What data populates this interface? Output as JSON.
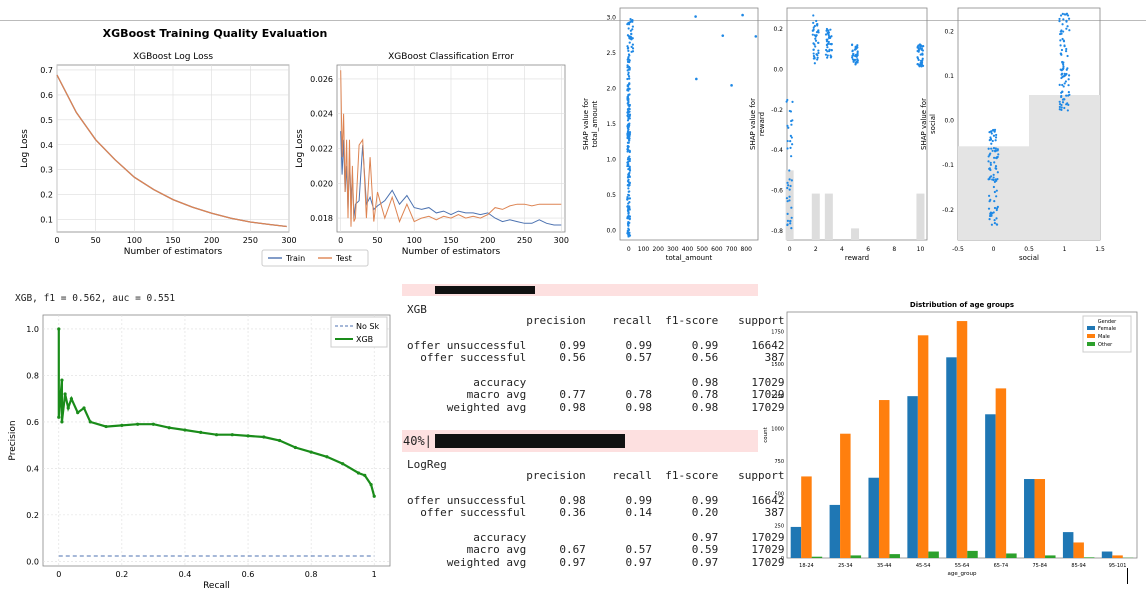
{
  "colors": {
    "blue": "#4c72b0",
    "orange": "#dd8452",
    "shap_blue": "#1e88e5",
    "green": "#1a8c1a",
    "pink": "#fde0e0",
    "bar_female": "#1f77b4",
    "bar_male": "#ff7f0e",
    "bar_other": "#2ca02c"
  },
  "xgb_eval": {
    "suptitle": "XGBoost Training Quality Evaluation",
    "legend": [
      "Train",
      "Test"
    ]
  },
  "pr_header": "XGB, f1 = 0.562, auc = 0.551",
  "report_progress": "40%|",
  "report_xgb": {
    "title": "XGB",
    "lines": [
      "                  precision    recall  f1-score   support",
      "",
      "offer unsuccessful     0.99      0.99      0.99     16642",
      "  offer successful     0.56      0.57      0.56       387",
      "",
      "          accuracy                         0.98     17029",
      "         macro avg     0.77      0.78      0.78     17029",
      "      weighted avg     0.98      0.98      0.98     17029"
    ]
  },
  "report_logreg": {
    "title": "LogReg",
    "lines": [
      "                  precision    recall  f1-score   support",
      "",
      "offer unsuccessful     0.98      0.99      0.99     16642",
      "  offer successful     0.36      0.14      0.20       387",
      "",
      "          accuracy                         0.97     17029",
      "         macro avg     0.67      0.57      0.59     17029",
      "      weighted avg     0.97      0.97      0.97     17029"
    ]
  },
  "chart_data": [
    {
      "id": "logloss",
      "type": "line",
      "title": "XGBoost Log Loss",
      "xlabel": "Number of estimators",
      "ylabel": "Log Loss",
      "xlim": [
        0,
        300
      ],
      "ylim": [
        0.05,
        0.72
      ],
      "xticks": [
        0,
        50,
        100,
        150,
        200,
        250,
        300
      ],
      "yticks": [
        0.1,
        0.2,
        0.3,
        0.4,
        0.5,
        0.6,
        0.7
      ],
      "series": [
        {
          "name": "Train",
          "color": "#4c72b0",
          "x": [
            0,
            25,
            50,
            75,
            100,
            125,
            150,
            175,
            200,
            225,
            250,
            275,
            297
          ],
          "values": [
            0.68,
            0.53,
            0.42,
            0.34,
            0.27,
            0.22,
            0.18,
            0.15,
            0.125,
            0.105,
            0.09,
            0.08,
            0.072
          ]
        },
        {
          "name": "Test",
          "color": "#dd8452",
          "x": [
            0,
            25,
            50,
            75,
            100,
            125,
            150,
            175,
            200,
            225,
            250,
            275,
            297
          ],
          "values": [
            0.68,
            0.53,
            0.42,
            0.34,
            0.27,
            0.22,
            0.18,
            0.15,
            0.125,
            0.105,
            0.09,
            0.08,
            0.072
          ]
        }
      ],
      "grid": true
    },
    {
      "id": "clferror",
      "type": "line",
      "title": "XGBoost Classification Error",
      "xlabel": "Number of estimators",
      "ylabel": "Log Loss",
      "xlim": [
        -5,
        305
      ],
      "ylim": [
        0.0172,
        0.0268
      ],
      "xticks": [
        0,
        50,
        100,
        150,
        200,
        250,
        300
      ],
      "yticks": [
        0.018,
        0.02,
        0.022,
        0.024,
        0.026
      ],
      "series": [
        {
          "name": "Train",
          "color": "#4c72b0",
          "x": [
            0,
            2,
            4,
            6,
            8,
            10,
            12,
            14,
            16,
            18,
            20,
            25,
            30,
            35,
            40,
            45,
            50,
            60,
            70,
            80,
            90,
            100,
            110,
            120,
            130,
            140,
            150,
            160,
            170,
            180,
            190,
            200,
            210,
            220,
            230,
            240,
            250,
            260,
            270,
            280,
            290,
            300
          ],
          "values": [
            0.023,
            0.0205,
            0.0225,
            0.0195,
            0.021,
            0.0185,
            0.0215,
            0.019,
            0.0205,
            0.018,
            0.0188,
            0.019,
            0.0222,
            0.0188,
            0.0192,
            0.0185,
            0.0187,
            0.019,
            0.0196,
            0.0188,
            0.0193,
            0.0186,
            0.0185,
            0.0186,
            0.0183,
            0.0184,
            0.0182,
            0.0184,
            0.0183,
            0.0183,
            0.0182,
            0.0183,
            0.018,
            0.0178,
            0.0179,
            0.0178,
            0.0177,
            0.0177,
            0.0179,
            0.0177,
            0.0176,
            0.0176
          ]
        },
        {
          "name": "Test",
          "color": "#dd8452",
          "x": [
            0,
            2,
            4,
            6,
            8,
            10,
            12,
            14,
            16,
            18,
            20,
            25,
            30,
            35,
            40,
            45,
            50,
            60,
            70,
            80,
            90,
            100,
            110,
            120,
            130,
            140,
            150,
            160,
            170,
            180,
            190,
            200,
            210,
            220,
            230,
            240,
            250,
            260,
            270,
            280,
            290,
            300
          ],
          "values": [
            0.0265,
            0.0215,
            0.024,
            0.0195,
            0.0225,
            0.018,
            0.0225,
            0.0175,
            0.021,
            0.0178,
            0.018,
            0.0222,
            0.0225,
            0.018,
            0.0215,
            0.0178,
            0.0195,
            0.018,
            0.0192,
            0.0178,
            0.0188,
            0.0178,
            0.018,
            0.0181,
            0.0179,
            0.0181,
            0.018,
            0.0182,
            0.018,
            0.0181,
            0.018,
            0.0182,
            0.0186,
            0.0185,
            0.0187,
            0.0188,
            0.0188,
            0.0187,
            0.0188,
            0.0188,
            0.0188,
            0.0188
          ]
        }
      ],
      "grid": true
    },
    {
      "id": "shap_total",
      "type": "scatter",
      "xlabel": "total_amount",
      "ylabel": "SHAP value for\ntotal_amount",
      "xlim": [
        -60,
        880
      ],
      "ylim": [
        -0.15,
        3.12
      ],
      "xticks": [
        0,
        100,
        200,
        300,
        400,
        500,
        600,
        700,
        800
      ],
      "yticks": [
        0.0,
        0.5,
        1.0,
        1.5,
        2.0,
        2.5,
        3.0
      ],
      "points": [
        [
          455,
          3.0
        ],
        [
          460,
          2.12
        ],
        [
          640,
          2.73
        ],
        [
          700,
          2.03
        ],
        [
          775,
          3.02
        ],
        [
          865,
          2.72
        ]
      ]
    },
    {
      "id": "shap_reward",
      "type": "scatter",
      "xlabel": "reward",
      "ylabel": "SHAP value for\nreward",
      "xlim": [
        -0.2,
        10.5
      ],
      "ylim": [
        -0.85,
        0.3
      ],
      "xticks": [
        0,
        2,
        4,
        6,
        8,
        10
      ],
      "yticks": [
        -0.8,
        -0.6,
        -0.4,
        -0.2,
        0.0,
        0.2
      ],
      "hist": [
        [
          0,
          0.7
        ],
        [
          2,
          0.8
        ],
        [
          3,
          0.8
        ],
        [
          5,
          0.95
        ],
        [
          10,
          0.8
        ]
      ]
    },
    {
      "id": "shap_social",
      "type": "scatter",
      "xlabel": "social",
      "ylabel": "SHAP value for\nsocial",
      "xlim": [
        -0.5,
        1.5
      ],
      "ylim": [
        -0.27,
        0.25
      ],
      "xticks": [
        -0.5,
        0.0,
        0.5,
        1.0,
        1.5
      ],
      "yticks": [
        -0.2,
        -0.1,
        0.0,
        0.1,
        0.2
      ]
    },
    {
      "id": "pr",
      "type": "line",
      "xlabel": "Recall",
      "ylabel": "Precision",
      "xlim": [
        -0.05,
        1.05
      ],
      "ylim": [
        -0.02,
        1.06
      ],
      "xticks": [
        0.0,
        0.2,
        0.4,
        0.6,
        0.8,
        1.0
      ],
      "yticks": [
        0.0,
        0.2,
        0.4,
        0.6,
        0.8,
        1.0
      ],
      "legend": [
        "No Sk",
        "XGB"
      ],
      "no_skill": 0.023,
      "series": [
        {
          "name": "XGB",
          "color": "#1a8c1a",
          "x": [
            0,
            0.0,
            0.01,
            0.01,
            0.02,
            0.03,
            0.04,
            0.06,
            0.08,
            0.1,
            0.15,
            0.2,
            0.25,
            0.3,
            0.35,
            0.4,
            0.45,
            0.5,
            0.55,
            0.6,
            0.65,
            0.7,
            0.75,
            0.8,
            0.85,
            0.9,
            0.95,
            0.97,
            0.99,
            1.0
          ],
          "values": [
            1.0,
            0.62,
            0.78,
            0.6,
            0.72,
            0.66,
            0.7,
            0.64,
            0.66,
            0.6,
            0.58,
            0.585,
            0.59,
            0.59,
            0.575,
            0.565,
            0.555,
            0.545,
            0.545,
            0.54,
            0.535,
            0.52,
            0.49,
            0.47,
            0.45,
            0.42,
            0.38,
            0.37,
            0.33,
            0.28
          ]
        }
      ]
    },
    {
      "id": "age",
      "type": "bar",
      "title": "Distribution of age groups",
      "xlabel": "age_group",
      "ylabel": "count",
      "ylim": [
        0,
        1900
      ],
      "yticks": [
        0,
        250,
        500,
        750,
        1000,
        1250,
        1500,
        1750
      ],
      "legend_title": "Gender",
      "categories": [
        "18-24",
        "25-34",
        "35-44",
        "45-54",
        "55-64",
        "65-74",
        "75-84",
        "85-94",
        "95-101"
      ],
      "series": [
        {
          "name": "Female",
          "color": "#1f77b4",
          "values": [
            240,
            410,
            620,
            1250,
            1550,
            1110,
            610,
            200,
            50
          ]
        },
        {
          "name": "Male",
          "color": "#ff7f0e",
          "values": [
            630,
            960,
            1220,
            1720,
            1830,
            1310,
            610,
            120,
            20
          ]
        },
        {
          "name": "Other",
          "color": "#2ca02c",
          "values": [
            10,
            20,
            30,
            50,
            55,
            35,
            20,
            5,
            2
          ]
        }
      ]
    }
  ]
}
